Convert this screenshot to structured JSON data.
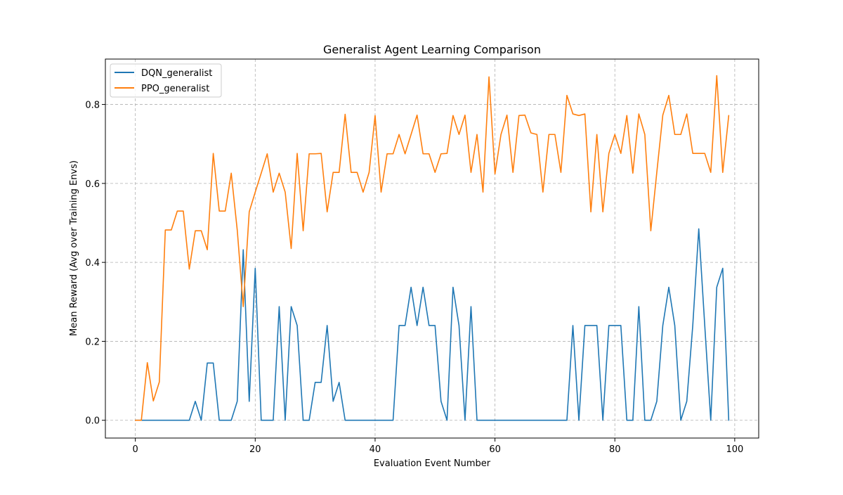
{
  "chart_data": {
    "type": "line",
    "title": "Generalist Agent Learning Comparison",
    "xlabel": "Evaluation Event Number",
    "ylabel": "Mean Reward (Avg over Training Envs)",
    "xlim": [
      -5,
      104
    ],
    "ylim": [
      -0.045,
      0.915
    ],
    "xticks": [
      0,
      20,
      40,
      60,
      80,
      100
    ],
    "yticks": [
      0.0,
      0.2,
      0.4,
      0.6,
      0.8
    ],
    "xtick_labels": [
      "0",
      "20",
      "40",
      "60",
      "80",
      "100"
    ],
    "ytick_labels": [
      "0.0",
      "0.2",
      "0.4",
      "0.6",
      "0.8"
    ],
    "grid": true,
    "legend_position": "top-left",
    "series": [
      {
        "name": "DQN_generalist",
        "color": "#1f77b4",
        "x": [
          0,
          1,
          2,
          3,
          4,
          5,
          6,
          7,
          8,
          9,
          10,
          11,
          12,
          13,
          14,
          15,
          16,
          17,
          18,
          19,
          20,
          21,
          22,
          23,
          24,
          25,
          26,
          27,
          28,
          29,
          30,
          31,
          32,
          33,
          34,
          35,
          36,
          37,
          38,
          39,
          40,
          41,
          42,
          43,
          44,
          45,
          46,
          47,
          48,
          49,
          50,
          51,
          52,
          53,
          54,
          55,
          56,
          57,
          58,
          59,
          60,
          61,
          62,
          63,
          64,
          65,
          66,
          67,
          68,
          69,
          70,
          71,
          72,
          73,
          74,
          75,
          76,
          77,
          78,
          79,
          80,
          81,
          82,
          83,
          84,
          85,
          86,
          87,
          88,
          89,
          90,
          91,
          92,
          93,
          94,
          95,
          96,
          97,
          98,
          99
        ],
        "values": [
          0,
          0,
          0,
          0,
          0,
          0,
          0,
          0,
          0,
          0,
          0.048,
          0,
          0.145,
          0.145,
          0,
          0,
          0,
          0.048,
          0.432,
          0.048,
          0.385,
          0,
          0,
          0,
          0.288,
          0,
          0.288,
          0.24,
          0,
          0,
          0.096,
          0.096,
          0.24,
          0.048,
          0.096,
          0,
          0,
          0,
          0,
          0,
          0,
          0,
          0,
          0,
          0.24,
          0.24,
          0.337,
          0.24,
          0.337,
          0.24,
          0.24,
          0.048,
          0,
          0.337,
          0.24,
          0,
          0.288,
          0,
          0,
          0,
          0,
          0,
          0,
          0,
          0,
          0,
          0,
          0,
          0,
          0,
          0,
          0,
          0,
          0.24,
          0,
          0.24,
          0.24,
          0.24,
          0,
          0.24,
          0.24,
          0.24,
          0,
          0,
          0.288,
          0,
          0,
          0.048,
          0.24,
          0.337,
          0.24,
          0,
          0.048,
          0.24,
          0.485,
          0.24,
          0,
          0.337,
          0.385,
          0
        ]
      },
      {
        "name": "PPO_generalist",
        "color": "#ff7f0e",
        "x": [
          0,
          1,
          2,
          3,
          4,
          5,
          6,
          7,
          8,
          9,
          10,
          11,
          12,
          13,
          14,
          15,
          16,
          17,
          18,
          19,
          20,
          21,
          22,
          23,
          24,
          25,
          26,
          27,
          28,
          29,
          30,
          31,
          32,
          33,
          34,
          35,
          36,
          37,
          38,
          39,
          40,
          41,
          42,
          43,
          44,
          45,
          46,
          47,
          48,
          49,
          50,
          51,
          52,
          53,
          54,
          55,
          56,
          57,
          58,
          59,
          60,
          61,
          62,
          63,
          64,
          65,
          66,
          67,
          68,
          69,
          70,
          71,
          72,
          73,
          74,
          75,
          76,
          77,
          78,
          79,
          80,
          81,
          82,
          83,
          84,
          85,
          86,
          87,
          88,
          89,
          90,
          91,
          92,
          93,
          94,
          95,
          96,
          97,
          98,
          99
        ],
        "values": [
          0,
          0,
          0.146,
          0.049,
          0.097,
          0.482,
          0.482,
          0.53,
          0.53,
          0.383,
          0.48,
          0.48,
          0.432,
          0.676,
          0.53,
          0.53,
          0.626,
          0.482,
          0.288,
          0.528,
          0.578,
          0.626,
          0.675,
          0.578,
          0.626,
          0.578,
          0.435,
          0.676,
          0.48,
          0.675,
          0.675,
          0.676,
          0.528,
          0.628,
          0.628,
          0.775,
          0.628,
          0.628,
          0.578,
          0.628,
          0.772,
          0.578,
          0.675,
          0.675,
          0.724,
          0.675,
          0.724,
          0.773,
          0.675,
          0.675,
          0.628,
          0.675,
          0.676,
          0.772,
          0.724,
          0.773,
          0.628,
          0.724,
          0.578,
          0.87,
          0.624,
          0.724,
          0.773,
          0.628,
          0.772,
          0.773,
          0.728,
          0.724,
          0.578,
          0.724,
          0.724,
          0.628,
          0.823,
          0.776,
          0.772,
          0.776,
          0.528,
          0.724,
          0.528,
          0.676,
          0.724,
          0.676,
          0.772,
          0.626,
          0.776,
          0.724,
          0.48,
          0.628,
          0.773,
          0.823,
          0.724,
          0.724,
          0.776,
          0.676,
          0.676,
          0.676,
          0.628,
          0.873,
          0.628,
          0.772
        ]
      }
    ]
  }
}
